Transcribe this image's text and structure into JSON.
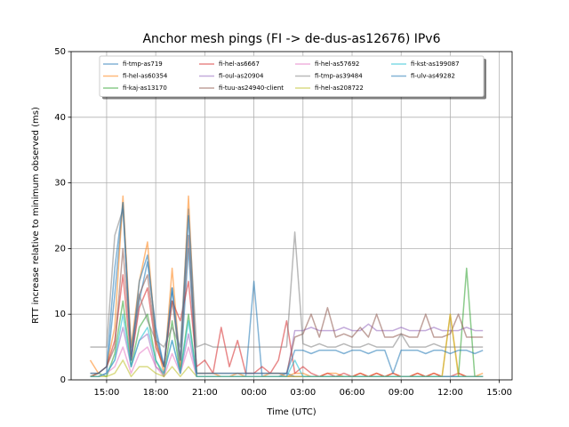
{
  "chart_data": {
    "type": "line",
    "title": "Anchor mesh pings (FI -> de-dus-as12676) IPv6",
    "xlabel": "Time (UTC)",
    "ylabel": "RTT increase relative to minimum observed (ms)",
    "x": [
      14,
      14.5,
      15,
      15.5,
      16,
      16.5,
      17,
      17.5,
      18,
      18.5,
      19,
      19.5,
      20,
      20.5,
      21,
      21.5,
      22,
      22.5,
      23,
      23.5,
      24,
      24.5,
      25,
      25.5,
      26,
      26.5,
      27,
      27.5,
      28,
      28.5,
      29,
      29.5,
      30,
      30.5,
      31,
      31.5,
      32,
      32.5,
      33,
      33.5,
      34,
      34.5,
      35,
      35.5,
      36,
      36.5,
      37,
      37.5,
      38
    ],
    "xlim": [
      12.83,
      39.78
    ],
    "xticks": [
      {
        "value": 15,
        "label": "15:00"
      },
      {
        "value": 18,
        "label": "18:00"
      },
      {
        "value": 21,
        "label": "21:00"
      },
      {
        "value": 24,
        "label": "00:00"
      },
      {
        "value": 27,
        "label": "03:00"
      },
      {
        "value": 30,
        "label": "06:00"
      },
      {
        "value": 33,
        "label": "09:00"
      },
      {
        "value": 36,
        "label": "12:00"
      },
      {
        "value": 39,
        "label": "15:00"
      }
    ],
    "ylim": [
      0,
      50
    ],
    "yticks": [
      0,
      10,
      20,
      30,
      40,
      50
    ],
    "grid": true,
    "legend": "upper center",
    "series": [
      {
        "name": "fi-tmp-as719",
        "color": "#1f77b4",
        "values": [
          0.5,
          0.5,
          1,
          13,
          27,
          3,
          12,
          18,
          8,
          2,
          14,
          1,
          20,
          0.5,
          0.5,
          0.5,
          0.5,
          0.5,
          0.5,
          0.5,
          15,
          0.5,
          0.5,
          0.5,
          1,
          0.5,
          0.5,
          0.5,
          0.5,
          0.5,
          0.5,
          0.5,
          0.5,
          0.5,
          0.5,
          0.5,
          0.5,
          0.5,
          0.5,
          0.5,
          0.5,
          0.5,
          0.5,
          0.5,
          0.5,
          0.5,
          0.5,
          0.5,
          0.5
        ]
      },
      {
        "name": "fi-hel-as60354",
        "color": "#ff7f0e",
        "values": [
          3,
          1,
          2,
          8,
          28,
          5,
          15,
          21,
          6,
          1,
          17,
          2,
          28,
          1,
          1,
          1,
          0.5,
          0.5,
          1,
          0.5,
          0.5,
          0.5,
          1,
          1,
          0.5,
          1,
          1,
          0.5,
          0.5,
          1,
          1,
          0.5,
          0.5,
          1,
          0.5,
          1,
          0.5,
          1,
          0.5,
          0.5,
          1,
          0.5,
          1,
          0.5,
          10,
          1,
          0.5,
          0.5,
          1
        ]
      },
      {
        "name": "fi-kaj-as13170",
        "color": "#2ca02c",
        "values": [
          0.5,
          1,
          0.5,
          4,
          12,
          2,
          8,
          10,
          3,
          0.5,
          9,
          1,
          10,
          0.5,
          0.5,
          0.5,
          0.5,
          0.5,
          0.5,
          0.5,
          0.5,
          0.5,
          0.5,
          0.5,
          0.5,
          0.5,
          0.5,
          0.5,
          0.5,
          0.5,
          0.5,
          0.5,
          0.5,
          0.5,
          0.5,
          0.5,
          0.5,
          0.5,
          0.5,
          0.5,
          0.5,
          0.5,
          0.5,
          0.5,
          0.5,
          0.5,
          17,
          0.5,
          0.5
        ]
      },
      {
        "name": "fi-hel-as6667",
        "color": "#d62728",
        "values": [
          0.5,
          1,
          2,
          6,
          16,
          3,
          11,
          14,
          5,
          2,
          12,
          9,
          15,
          2,
          3,
          1,
          8,
          2,
          6,
          1,
          1,
          2,
          1,
          3,
          9,
          1,
          2,
          1,
          0.5,
          1,
          0.5,
          1,
          0.5,
          1,
          0.5,
          1,
          0.5,
          1,
          0.5,
          0.5,
          1,
          0.5,
          1,
          0.5,
          0.5,
          1,
          0.5,
          0.5,
          0.5
        ]
      },
      {
        "name": "fi-oul-as20904",
        "color": "#9467bd",
        "values": [
          0.5,
          0.5,
          1,
          3,
          8,
          2,
          6,
          7,
          2,
          1,
          6,
          1,
          7,
          0.5,
          0.5,
          0.5,
          0.5,
          0.5,
          0.5,
          0.5,
          0.5,
          0.5,
          0.5,
          0.5,
          0.5,
          7.5,
          7.5,
          8,
          7.5,
          7.5,
          7.5,
          8,
          7.5,
          7.5,
          8.5,
          7.5,
          7.5,
          7.5,
          8,
          7.5,
          7.5,
          7.5,
          8,
          7.5,
          7.5,
          7.5,
          8,
          7.5,
          7.5
        ]
      },
      {
        "name": "fi-tuu-as24940-client",
        "color": "#8c564b",
        "values": [
          1,
          1,
          2,
          5,
          20,
          4,
          13,
          16,
          6,
          2,
          12,
          3,
          22,
          1,
          1,
          1,
          1,
          1,
          1,
          1,
          1,
          1,
          1,
          1,
          1,
          6.5,
          7,
          10,
          6.5,
          11,
          6.5,
          7,
          6.5,
          8,
          6.5,
          10,
          6.5,
          6.5,
          7,
          6.5,
          6.5,
          10,
          6.5,
          6.5,
          7,
          10,
          6.5,
          6.5,
          6.5
        ]
      },
      {
        "name": "fi-hel-as57692",
        "color": "#e377c2",
        "values": [
          0.5,
          0.5,
          1,
          2,
          5,
          1,
          4,
          5,
          2,
          0.5,
          4,
          1,
          5,
          0.5,
          0.5,
          0.5,
          0.5,
          0.5,
          0.5,
          0.5,
          0.5,
          0.5,
          0.5,
          0.5,
          0.5,
          0.5,
          0.5,
          0.5,
          0.5,
          0.5,
          0.5,
          0.5,
          0.5,
          0.5,
          0.5,
          0.5,
          0.5,
          0.5,
          0.5,
          0.5,
          0.5,
          0.5,
          0.5,
          0.5,
          0.5,
          0.5,
          0.5,
          0.5,
          0.5
        ]
      },
      {
        "name": "fi-tmp-as39484",
        "color": "#7f7f7f",
        "values": [
          5,
          5,
          5,
          22,
          26,
          5,
          13,
          9,
          6,
          5,
          8,
          5,
          26,
          5,
          5.5,
          5,
          5,
          5,
          5,
          5,
          5,
          5,
          5,
          5,
          5,
          22.5,
          5.5,
          5,
          5.5,
          5,
          5,
          5.5,
          5,
          5,
          5.5,
          5,
          5,
          5,
          7,
          5,
          5,
          5,
          5.5,
          5,
          5,
          5,
          5,
          5,
          5
        ]
      },
      {
        "name": "fi-hel-as208722",
        "color": "#bcbd22",
        "values": [
          0.5,
          0.5,
          0.5,
          1,
          3,
          0.5,
          2,
          2,
          1,
          0.5,
          2,
          0.5,
          2,
          0.5,
          0.5,
          0.5,
          0.5,
          0.5,
          0.5,
          0.5,
          0.5,
          0.5,
          0.5,
          0.5,
          0.5,
          0.5,
          0.5,
          0.5,
          0.5,
          0.5,
          0.5,
          0.5,
          0.5,
          0.5,
          0.5,
          0.5,
          0.5,
          0.5,
          0.5,
          0.5,
          0.5,
          0.5,
          0.5,
          0.5,
          10,
          0.5,
          0.5,
          0.5,
          0.5
        ]
      },
      {
        "name": "fi-kst-as199087",
        "color": "#17becf",
        "values": [
          0.5,
          0.5,
          1,
          3,
          10,
          2,
          6,
          8,
          3,
          1,
          6,
          1,
          9,
          0.5,
          0.5,
          0.5,
          0.5,
          0.5,
          0.5,
          0.5,
          0.5,
          0.5,
          0.5,
          0.5,
          0.5,
          3,
          0.5,
          0.5,
          0.5,
          0.5,
          0.5,
          0.5,
          0.5,
          0.5,
          0.5,
          0.5,
          0.5,
          0.5,
          0.5,
          0.5,
          0.5,
          0.5,
          0.5,
          0.5,
          0.5,
          0.5,
          0.5,
          0.5,
          0.5
        ]
      },
      {
        "name": "fi-ulv-as49282",
        "color": "#1f77b4",
        "values": [
          1,
          1,
          2,
          17,
          27,
          3,
          15,
          19,
          7,
          2,
          14,
          3,
          25,
          1,
          1,
          1,
          1,
          1,
          1,
          1,
          1,
          1,
          1,
          1,
          1,
          4.5,
          4.5,
          4,
          4.5,
          4.5,
          4.5,
          4,
          4.5,
          4.5,
          4,
          4.5,
          4.5,
          1,
          4.5,
          4.5,
          4.5,
          4,
          4.5,
          4.5,
          4,
          4.5,
          4.5,
          4,
          4.5
        ]
      }
    ]
  }
}
